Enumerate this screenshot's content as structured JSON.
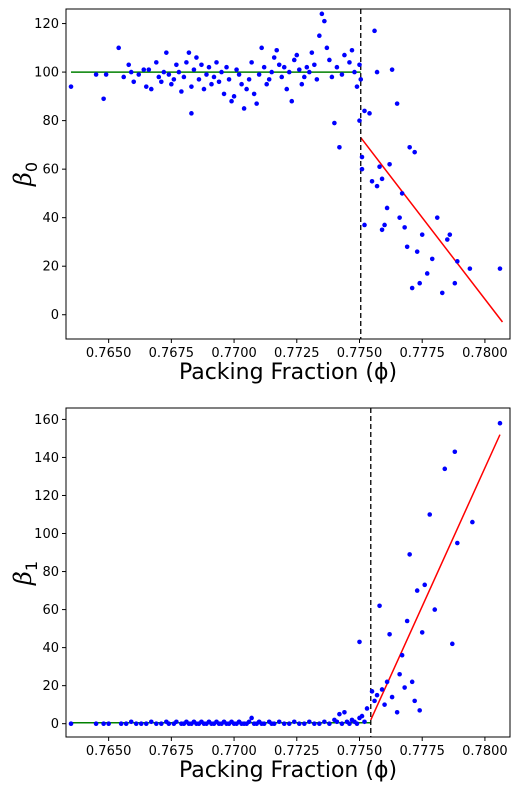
{
  "chart_data": [
    {
      "type": "scatter",
      "id": "beta0",
      "ylabel": "β",
      "ylabel_sub": "0",
      "xlabel": "Packing Fraction (ϕ)",
      "xlim": [
        0.7633,
        0.781
      ],
      "ylim": [
        -10,
        126
      ],
      "xticks": [
        0.765,
        0.7675,
        0.77,
        0.7725,
        0.775,
        0.7775,
        0.78
      ],
      "xtick_labels": [
        "0.7650",
        "0.7675",
        "0.7700",
        "0.7725",
        "0.7750",
        "0.7775",
        "0.7800"
      ],
      "yticks": [
        0,
        20,
        40,
        60,
        80,
        100,
        120
      ],
      "ytick_labels": [
        "0",
        "20",
        "40",
        "60",
        "80",
        "100",
        "120"
      ],
      "grid": false,
      "colors": {
        "points": "#0000ff",
        "fit_low": "#008000",
        "fit_high": "#ff0000",
        "threshold": "#000000"
      },
      "threshold_x": 0.77505,
      "fits": [
        {
          "color": "#008000",
          "x": [
            0.7635,
            0.77505
          ],
          "y": [
            100,
            100
          ]
        },
        {
          "color": "#ff0000",
          "x": [
            0.77505,
            0.7807
          ],
          "y": [
            73,
            -3
          ]
        }
      ],
      "points": [
        [
          0.7635,
          94
        ],
        [
          0.7645,
          99
        ],
        [
          0.7648,
          89
        ],
        [
          0.7649,
          99
        ],
        [
          0.7654,
          110
        ],
        [
          0.7656,
          98
        ],
        [
          0.7658,
          103
        ],
        [
          0.7659,
          100
        ],
        [
          0.766,
          96
        ],
        [
          0.7662,
          99
        ],
        [
          0.7664,
          101
        ],
        [
          0.7665,
          94
        ],
        [
          0.7666,
          101
        ],
        [
          0.7667,
          93
        ],
        [
          0.7669,
          104
        ],
        [
          0.767,
          98
        ],
        [
          0.7671,
          96
        ],
        [
          0.7672,
          100
        ],
        [
          0.7673,
          108
        ],
        [
          0.7674,
          99
        ],
        [
          0.7675,
          95
        ],
        [
          0.7676,
          97
        ],
        [
          0.7677,
          103
        ],
        [
          0.7678,
          100
        ],
        [
          0.7679,
          92
        ],
        [
          0.768,
          98
        ],
        [
          0.7681,
          104
        ],
        [
          0.7682,
          108
        ],
        [
          0.7683,
          83
        ],
        [
          0.7683,
          94
        ],
        [
          0.7684,
          101
        ],
        [
          0.7685,
          106
        ],
        [
          0.7686,
          97
        ],
        [
          0.7687,
          103
        ],
        [
          0.7688,
          93
        ],
        [
          0.7689,
          99
        ],
        [
          0.769,
          102
        ],
        [
          0.7691,
          95
        ],
        [
          0.7692,
          98
        ],
        [
          0.7693,
          104
        ],
        [
          0.7694,
          96
        ],
        [
          0.7695,
          100
        ],
        [
          0.7696,
          91
        ],
        [
          0.7697,
          102
        ],
        [
          0.7698,
          97
        ],
        [
          0.7699,
          88
        ],
        [
          0.77,
          90
        ],
        [
          0.7701,
          101
        ],
        [
          0.7702,
          99
        ],
        [
          0.7703,
          95
        ],
        [
          0.7704,
          85
        ],
        [
          0.7705,
          93
        ],
        [
          0.7706,
          97
        ],
        [
          0.7707,
          104
        ],
        [
          0.7708,
          91
        ],
        [
          0.7709,
          87
        ],
        [
          0.771,
          99
        ],
        [
          0.7711,
          110
        ],
        [
          0.7712,
          102
        ],
        [
          0.7713,
          95
        ],
        [
          0.7714,
          97
        ],
        [
          0.7715,
          100
        ],
        [
          0.7716,
          106
        ],
        [
          0.7717,
          109
        ],
        [
          0.7718,
          103
        ],
        [
          0.7719,
          98
        ],
        [
          0.772,
          102
        ],
        [
          0.7721,
          93
        ],
        [
          0.7722,
          100
        ],
        [
          0.7723,
          88
        ],
        [
          0.7724,
          105
        ],
        [
          0.7725,
          107
        ],
        [
          0.7726,
          101
        ],
        [
          0.7727,
          95
        ],
        [
          0.7728,
          98
        ],
        [
          0.7729,
          102
        ],
        [
          0.773,
          100
        ],
        [
          0.7731,
          108
        ],
        [
          0.7732,
          103
        ],
        [
          0.7733,
          97
        ],
        [
          0.7734,
          115
        ],
        [
          0.7735,
          124
        ],
        [
          0.7736,
          121
        ],
        [
          0.7737,
          110
        ],
        [
          0.7738,
          105
        ],
        [
          0.7739,
          98
        ],
        [
          0.774,
          79
        ],
        [
          0.7741,
          102
        ],
        [
          0.7742,
          69
        ],
        [
          0.7743,
          99
        ],
        [
          0.7744,
          107
        ],
        [
          0.7746,
          104
        ],
        [
          0.7747,
          109
        ],
        [
          0.7748,
          100
        ],
        [
          0.7749,
          94
        ],
        [
          0.775,
          80
        ],
        [
          0.775,
          103
        ],
        [
          0.77505,
          97
        ],
        [
          0.7751,
          65
        ],
        [
          0.7751,
          60
        ],
        [
          0.7752,
          37
        ],
        [
          0.7752,
          84
        ],
        [
          0.7754,
          83
        ],
        [
          0.7755,
          55
        ],
        [
          0.7756,
          117
        ],
        [
          0.7757,
          100
        ],
        [
          0.7757,
          53
        ],
        [
          0.7758,
          61
        ],
        [
          0.7759,
          56
        ],
        [
          0.7759,
          35
        ],
        [
          0.776,
          37
        ],
        [
          0.7761,
          44
        ],
        [
          0.7762,
          62
        ],
        [
          0.7763,
          101
        ],
        [
          0.7765,
          87
        ],
        [
          0.7766,
          40
        ],
        [
          0.7767,
          50
        ],
        [
          0.7768,
          36
        ],
        [
          0.7769,
          28
        ],
        [
          0.777,
          69
        ],
        [
          0.7771,
          11
        ],
        [
          0.7772,
          67
        ],
        [
          0.7773,
          26
        ],
        [
          0.7774,
          13
        ],
        [
          0.7775,
          33
        ],
        [
          0.7777,
          17
        ],
        [
          0.7779,
          23
        ],
        [
          0.7781,
          40
        ],
        [
          0.7783,
          9
        ],
        [
          0.7785,
          31
        ],
        [
          0.7786,
          33
        ],
        [
          0.7788,
          13
        ],
        [
          0.7789,
          22
        ],
        [
          0.7794,
          19
        ],
        [
          0.7806,
          19
        ]
      ]
    },
    {
      "type": "scatter",
      "id": "beta1",
      "ylabel": "β",
      "ylabel_sub": "1",
      "xlabel": "Packing Fraction (ϕ)",
      "xlim": [
        0.7633,
        0.781
      ],
      "ylim": [
        -7,
        166
      ],
      "xticks": [
        0.765,
        0.7675,
        0.77,
        0.7725,
        0.775,
        0.7775,
        0.78
      ],
      "xtick_labels": [
        "0.7650",
        "0.7675",
        "0.7700",
        "0.7725",
        "0.7750",
        "0.7775",
        "0.7800"
      ],
      "yticks": [
        0,
        20,
        40,
        60,
        80,
        100,
        120,
        140,
        160
      ],
      "ytick_labels": [
        "0",
        "20",
        "40",
        "60",
        "80",
        "100",
        "120",
        "140",
        "160"
      ],
      "grid": false,
      "colors": {
        "points": "#0000ff",
        "fit_low": "#008000",
        "fit_high": "#ff0000",
        "threshold": "#000000"
      },
      "threshold_x": 0.77545,
      "fits": [
        {
          "color": "#008000",
          "x": [
            0.7635,
            0.77545
          ],
          "y": [
            0.5,
            0.5
          ]
        },
        {
          "color": "#ff0000",
          "x": [
            0.77545,
            0.7806
          ],
          "y": [
            2,
            152
          ]
        }
      ],
      "points": [
        [
          0.7635,
          0
        ],
        [
          0.7645,
          0
        ],
        [
          0.7648,
          0
        ],
        [
          0.765,
          0
        ],
        [
          0.7655,
          0
        ],
        [
          0.7657,
          0
        ],
        [
          0.7659,
          1
        ],
        [
          0.7661,
          0
        ],
        [
          0.7663,
          0
        ],
        [
          0.7665,
          0
        ],
        [
          0.7667,
          1
        ],
        [
          0.7669,
          0
        ],
        [
          0.7671,
          0
        ],
        [
          0.7673,
          1
        ],
        [
          0.7674,
          0
        ],
        [
          0.7676,
          0
        ],
        [
          0.7677,
          1
        ],
        [
          0.7679,
          0
        ],
        [
          0.768,
          0
        ],
        [
          0.7681,
          1
        ],
        [
          0.7682,
          0
        ],
        [
          0.7683,
          0
        ],
        [
          0.7684,
          1
        ],
        [
          0.7685,
          0
        ],
        [
          0.7686,
          0
        ],
        [
          0.7687,
          1
        ],
        [
          0.7688,
          0
        ],
        [
          0.7689,
          0
        ],
        [
          0.769,
          1
        ],
        [
          0.7691,
          0
        ],
        [
          0.7692,
          0
        ],
        [
          0.7693,
          1
        ],
        [
          0.7694,
          0
        ],
        [
          0.7695,
          0
        ],
        [
          0.7696,
          1
        ],
        [
          0.7697,
          0
        ],
        [
          0.7698,
          0
        ],
        [
          0.7699,
          1
        ],
        [
          0.77,
          0
        ],
        [
          0.7701,
          0
        ],
        [
          0.7702,
          1
        ],
        [
          0.7703,
          0
        ],
        [
          0.7704,
          0
        ],
        [
          0.7705,
          0
        ],
        [
          0.7706,
          1
        ],
        [
          0.7707,
          3
        ],
        [
          0.7708,
          0
        ],
        [
          0.7709,
          0
        ],
        [
          0.771,
          1
        ],
        [
          0.7711,
          0
        ],
        [
          0.7712,
          0
        ],
        [
          0.7714,
          1
        ],
        [
          0.7715,
          0
        ],
        [
          0.7716,
          0
        ],
        [
          0.7718,
          1
        ],
        [
          0.772,
          0
        ],
        [
          0.7722,
          0
        ],
        [
          0.7724,
          1
        ],
        [
          0.7726,
          0
        ],
        [
          0.7728,
          0
        ],
        [
          0.773,
          1
        ],
        [
          0.7732,
          0
        ],
        [
          0.7734,
          0
        ],
        [
          0.7736,
          1
        ],
        [
          0.7738,
          0
        ],
        [
          0.774,
          2
        ],
        [
          0.7741,
          1
        ],
        [
          0.7742,
          5
        ],
        [
          0.7743,
          0
        ],
        [
          0.7744,
          6
        ],
        [
          0.7745,
          1
        ],
        [
          0.7746,
          0
        ],
        [
          0.7747,
          2
        ],
        [
          0.7748,
          1
        ],
        [
          0.7749,
          0
        ],
        [
          0.775,
          43
        ],
        [
          0.775,
          3
        ],
        [
          0.7751,
          4
        ],
        [
          0.7752,
          1
        ],
        [
          0.7753,
          8
        ],
        [
          0.7755,
          17
        ],
        [
          0.7756,
          12
        ],
        [
          0.7757,
          15
        ],
        [
          0.7758,
          62
        ],
        [
          0.7759,
          18
        ],
        [
          0.776,
          10
        ],
        [
          0.7761,
          22
        ],
        [
          0.7762,
          47
        ],
        [
          0.7763,
          14
        ],
        [
          0.7765,
          6
        ],
        [
          0.7766,
          26
        ],
        [
          0.7767,
          36
        ],
        [
          0.7768,
          19
        ],
        [
          0.7769,
          54
        ],
        [
          0.777,
          89
        ],
        [
          0.7771,
          22
        ],
        [
          0.7772,
          12
        ],
        [
          0.7773,
          70
        ],
        [
          0.7774,
          7
        ],
        [
          0.7775,
          48
        ],
        [
          0.7776,
          73
        ],
        [
          0.7778,
          110
        ],
        [
          0.778,
          60
        ],
        [
          0.7784,
          134
        ],
        [
          0.7787,
          42
        ],
        [
          0.7788,
          143
        ],
        [
          0.7789,
          95
        ],
        [
          0.7795,
          106
        ],
        [
          0.7806,
          158
        ]
      ]
    }
  ]
}
